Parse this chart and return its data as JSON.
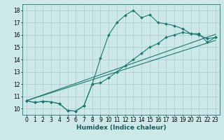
{
  "title": "",
  "xlabel": "Humidex (Indice chaleur)",
  "background_color": "#cce8e8",
  "grid_color": "#aacccc",
  "line_color": "#1a7a6e",
  "xlim": [
    -0.5,
    23.5
  ],
  "ylim": [
    9.5,
    18.5
  ],
  "xticks": [
    0,
    1,
    2,
    3,
    4,
    5,
    6,
    7,
    8,
    9,
    10,
    11,
    12,
    13,
    14,
    15,
    16,
    17,
    18,
    19,
    20,
    21,
    22,
    23
  ],
  "yticks": [
    10,
    11,
    12,
    13,
    14,
    15,
    16,
    17,
    18
  ],
  "line1_x": [
    0,
    1,
    2,
    3,
    4,
    5,
    6,
    7,
    8,
    9,
    10,
    11,
    12,
    13,
    14,
    15,
    16,
    17,
    18,
    19,
    20,
    21,
    22,
    23
  ],
  "line1_y": [
    10.65,
    10.5,
    10.6,
    10.55,
    10.4,
    9.85,
    9.8,
    10.25,
    12.0,
    14.1,
    16.0,
    17.0,
    17.6,
    18.0,
    17.4,
    17.65,
    17.0,
    16.9,
    16.75,
    16.5,
    16.1,
    16.1,
    15.4,
    15.8
  ],
  "line2_x": [
    0,
    1,
    2,
    3,
    4,
    5,
    6,
    7,
    8,
    9,
    10,
    11,
    12,
    13,
    14,
    15,
    16,
    17,
    18,
    19,
    20,
    21,
    22,
    23
  ],
  "line2_y": [
    10.65,
    10.5,
    10.6,
    10.55,
    10.4,
    9.85,
    9.8,
    10.25,
    12.0,
    12.1,
    12.5,
    13.0,
    13.5,
    14.0,
    14.5,
    15.0,
    15.3,
    15.8,
    16.0,
    16.2,
    16.1,
    16.0,
    15.7,
    15.8
  ],
  "line3_x": [
    0,
    23
  ],
  "line3_y": [
    10.65,
    16.05
  ],
  "line4_x": [
    0,
    23
  ],
  "line4_y": [
    10.65,
    15.55
  ],
  "marker_size": 2.0,
  "linewidth": 0.8,
  "tick_fontsize": 5.5
}
